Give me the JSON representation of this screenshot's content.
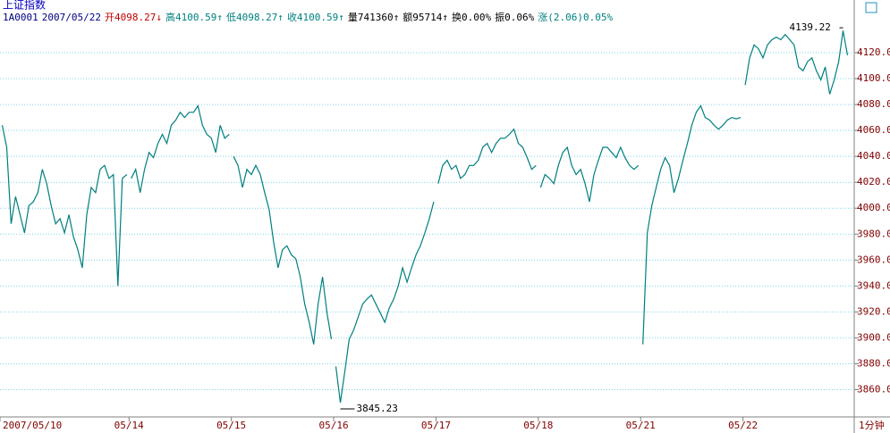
{
  "header": {
    "title": "上证指数",
    "quote": [
      {
        "text": "1A0001",
        "color": "#000080"
      },
      {
        "text": "2007/05/22",
        "color": "#000080"
      },
      {
        "text": "开4098.27↓",
        "color": "#c00000"
      },
      {
        "text": "高4100.59↑",
        "color": "#008080"
      },
      {
        "text": "低4098.27↑",
        "color": "#008080"
      },
      {
        "text": "收4100.59↑",
        "color": "#008080"
      },
      {
        "text": "量741360↑",
        "color": "#000000"
      },
      {
        "text": "额95714↑",
        "color": "#000000"
      },
      {
        "text": "换0.00%",
        "color": "#000000"
      },
      {
        "text": "振0.06%",
        "color": "#000000"
      },
      {
        "text": "涨(2.06)0.05%",
        "color": "#008080"
      }
    ]
  },
  "period": "1分钟",
  "chart_data": {
    "type": "line",
    "color": "#007f7f",
    "grid": true,
    "ylim": [
      3839,
      4151
    ],
    "yticks": [
      {
        "value": 3860,
        "label": "3860.0"
      },
      {
        "value": 3880,
        "label": "3880.0"
      },
      {
        "value": 3900,
        "label": "3900.0"
      },
      {
        "value": 3920,
        "label": "3920.0"
      },
      {
        "value": 3940,
        "label": "3940.0"
      },
      {
        "value": 3960,
        "label": "3960.0"
      },
      {
        "value": 3980,
        "label": "3980.0"
      },
      {
        "value": 4000,
        "label": "4000.0"
      },
      {
        "value": 4020,
        "label": "4020.0"
      },
      {
        "value": 4040,
        "label": "4040.0"
      },
      {
        "value": 4060,
        "label": "4060.0"
      },
      {
        "value": 4080,
        "label": "4080.0"
      },
      {
        "value": 4100,
        "label": "4100.0"
      },
      {
        "value": 4120,
        "label": "4120.0"
      }
    ],
    "days": [
      {
        "label": "2007/05/10",
        "values": [
          4064,
          4047,
          3988,
          4009,
          3995,
          3981,
          4002,
          4005,
          4012,
          4030,
          4019,
          4002,
          3988,
          3992,
          3981,
          3995,
          3978,
          3968,
          3954,
          3995,
          4016,
          4012,
          4030,
          4033,
          4023,
          4026,
          3940,
          4023,
          4026
        ]
      },
      {
        "label": "05/14",
        "values": [
          4023,
          4030,
          4012,
          4030,
          4043,
          4039,
          4050,
          4057,
          4050,
          4064,
          4068,
          4074,
          4070,
          4074,
          4074,
          4079,
          4064,
          4057,
          4054,
          4043,
          4064,
          4054,
          4057
        ]
      },
      {
        "label": "05/15",
        "values": [
          4040,
          4033,
          4016,
          4030,
          4026,
          4033,
          4026,
          4012,
          3999,
          3974,
          3954,
          3968,
          3971,
          3964,
          3961,
          3947,
          3926,
          3912,
          3895,
          3926,
          3947,
          3919,
          3899
        ]
      },
      {
        "label": "05/16",
        "values": [
          3878,
          3850,
          3874,
          3899,
          3906,
          3916,
          3926,
          3930,
          3933,
          3926,
          3919,
          3912,
          3923,
          3930,
          3940,
          3954,
          3943,
          3954,
          3964,
          3971,
          3981,
          3992,
          4005
        ]
      },
      {
        "label": "05/17",
        "values": [
          4019,
          4033,
          4037,
          4030,
          4033,
          4023,
          4026,
          4033,
          4033,
          4037,
          4047,
          4050,
          4043,
          4050,
          4054,
          4054,
          4057,
          4061,
          4050,
          4047,
          4039,
          4030,
          4033
        ]
      },
      {
        "label": "05/18",
        "values": [
          4016,
          4026,
          4023,
          4019,
          4033,
          4043,
          4047,
          4033,
          4026,
          4030,
          4019,
          4005,
          4026,
          4037,
          4047,
          4047,
          4043,
          4039,
          4047,
          4039,
          4033,
          4030,
          4033
        ]
      },
      {
        "label": "05/21",
        "values": [
          3895,
          3981,
          4002,
          4016,
          4030,
          4039,
          4033,
          4012,
          4023,
          4037,
          4050,
          4064,
          4074,
          4079,
          4070,
          4068,
          4064,
          4061,
          4064,
          4068,
          4070,
          4069,
          4070
        ]
      },
      {
        "label": "05/22",
        "values": [
          4095,
          4116,
          4126,
          4123,
          4116,
          4126,
          4130,
          4132,
          4130,
          4134,
          4130,
          4126,
          4109,
          4106,
          4113,
          4116,
          4106,
          4099,
          4109,
          4088,
          4099,
          4113,
          4137,
          4118
        ]
      }
    ],
    "annotations": [
      {
        "text": "4139.22",
        "value": 4139.22
      },
      {
        "text": "3845.23",
        "value": 3845.23
      }
    ]
  }
}
